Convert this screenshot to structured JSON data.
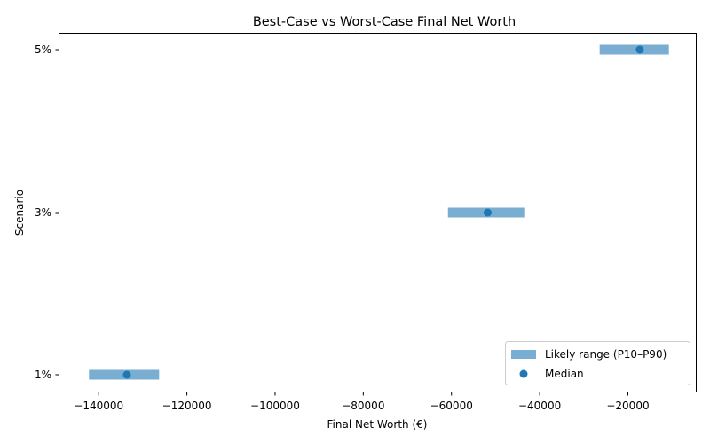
{
  "chart_data": {
    "type": "bar",
    "orientation": "horizontal-range",
    "title": "Best-Case vs Worst-Case Final Net Worth",
    "xlabel": "Final Net Worth (€)",
    "ylabel": "Scenario",
    "categories": [
      "1%",
      "3%",
      "5%"
    ],
    "series": [
      {
        "name": "Likely range (P10–P90)",
        "type": "range",
        "color": "#1f77b4",
        "alpha": 0.6,
        "p10": [
          -142200,
          -60800,
          -26400
        ],
        "p90": [
          -126300,
          -43500,
          -10700
        ]
      },
      {
        "name": "Median",
        "type": "scatter",
        "color": "#1f77b4",
        "values": [
          -133600,
          -51800,
          -17300
        ]
      }
    ],
    "xlim": [
      -149000,
      -4500
    ],
    "xticks": [
      -140000,
      -120000,
      -100000,
      -80000,
      -60000,
      -40000,
      -20000
    ],
    "xtick_labels": [
      "−140000",
      "−120000",
      "−100000",
      "−80000",
      "−60000",
      "−40000",
      "−20000"
    ],
    "grid": false,
    "legend_position": "lower right"
  }
}
